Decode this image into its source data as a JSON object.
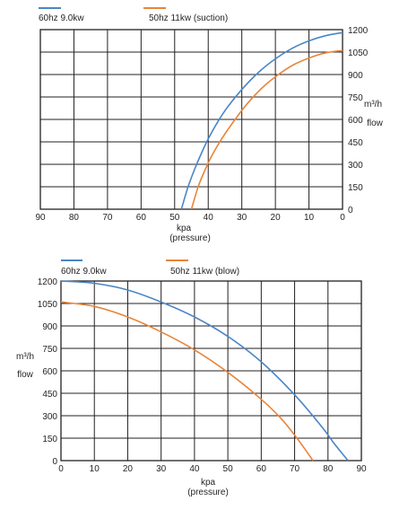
{
  "chart_data": [
    {
      "type": "line",
      "legend": [
        {
          "label": "60hz 9.0kw",
          "color": "#4a86c5"
        },
        {
          "label": "50hz  11kw  (suction)",
          "color": "#e8853a"
        }
      ],
      "xlabel": "kpa",
      "xlabel2": "(pressure)",
      "ylabel": "m³/h",
      "ylabel2": "flow",
      "xlim": [
        90,
        0
      ],
      "ylim": [
        0,
        1200
      ],
      "x_ticks": [
        "90",
        "80",
        "70",
        "60",
        "50",
        "40",
        "30",
        "20",
        "10",
        "0"
      ],
      "y_ticks": [
        "0",
        "150",
        "300",
        "450",
        "600",
        "750",
        "900",
        "1050",
        "1200"
      ],
      "grid": true,
      "series": [
        {
          "name": "60hz 9.0kw",
          "color": "#4a86c5",
          "x": [
            48,
            46,
            44,
            42,
            40,
            37,
            34,
            30,
            25,
            20,
            15,
            10,
            5,
            0
          ],
          "y": [
            0,
            150,
            270,
            375,
            470,
            590,
            690,
            800,
            915,
            1005,
            1075,
            1125,
            1160,
            1180
          ]
        },
        {
          "name": "50hz  11kw  (suction)",
          "color": "#e8853a",
          "x": [
            45,
            43,
            41,
            39,
            36,
            32,
            28,
            24,
            20,
            15,
            10,
            5,
            0
          ],
          "y": [
            0,
            150,
            260,
            355,
            470,
            600,
            715,
            810,
            885,
            960,
            1010,
            1045,
            1060
          ]
        }
      ]
    },
    {
      "type": "line",
      "legend": [
        {
          "label": "60hz 9.0kw",
          "color": "#4a86c5"
        },
        {
          "label": "50hz  11kw  (blow)",
          "color": "#e8853a"
        }
      ],
      "xlabel": "kpa",
      "xlabel2": "(pressure)",
      "ylabel": "m³/h",
      "ylabel2": "flow",
      "xlim": [
        0,
        90
      ],
      "ylim": [
        0,
        1200
      ],
      "x_ticks": [
        "0",
        "10",
        "20",
        "30",
        "40",
        "50",
        "60",
        "70",
        "80",
        "90"
      ],
      "y_ticks": [
        "0",
        "150",
        "300",
        "450",
        "600",
        "750",
        "900",
        "1050",
        "1200"
      ],
      "grid": true,
      "series": [
        {
          "name": "60hz 9.0kw",
          "color": "#4a86c5",
          "x": [
            0,
            10,
            20,
            30,
            40,
            50,
            60,
            70,
            78,
            82,
            86
          ],
          "y": [
            1200,
            1185,
            1140,
            1060,
            960,
            830,
            660,
            440,
            230,
            110,
            0
          ]
        },
        {
          "name": "50hz  11kw  (blow)",
          "color": "#e8853a",
          "x": [
            0,
            10,
            20,
            30,
            40,
            50,
            60,
            66,
            70,
            73,
            75.5
          ],
          "y": [
            1060,
            1030,
            960,
            860,
            740,
            590,
            410,
            280,
            170,
            80,
            0
          ]
        }
      ]
    }
  ]
}
